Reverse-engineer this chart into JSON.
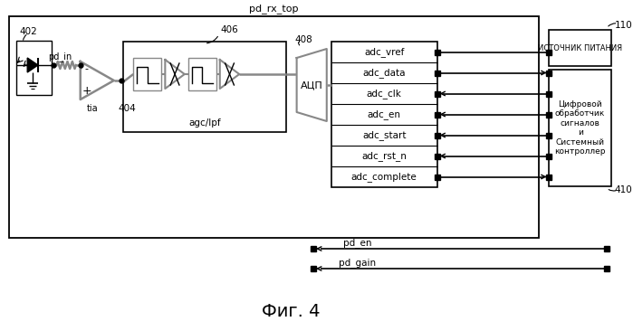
{
  "title": "Фиг. 4",
  "pd_rx_top_label": "pd_rx_top",
  "label_402": "402",
  "label_404": "404",
  "label_406": "406",
  "label_408": "408",
  "label_410": "410",
  "label_110": "110",
  "tia_label": "tia",
  "agc_label": "agc/lpf",
  "adc_label": "АЦП",
  "pd_in_label": "pd_in",
  "source_label": "ИСТОЧНИК ПИТАНИЯ",
  "dsp_label": "Цифровой\nобработчик\nсигналов\nи\nСистемный\nконтроллер",
  "adc_signals_right": [
    "adc_vref",
    "adc_data",
    "adc_clk",
    "adc_en",
    "adc_start",
    "adc_rst_n",
    "adc_complete"
  ],
  "adc_signals_arrows": [
    "none",
    "right",
    "left",
    "left",
    "left",
    "left",
    "right"
  ],
  "pd_signals": [
    "pd_en",
    "pd_gain"
  ],
  "bg_color": "#ffffff",
  "box_color": "#000000",
  "gray_color": "#888888"
}
